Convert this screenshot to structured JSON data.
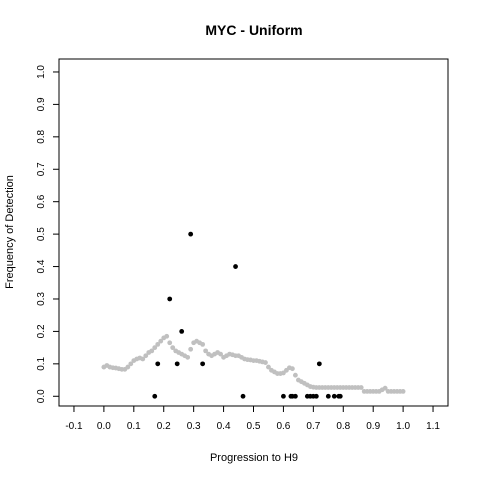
{
  "chart_data": {
    "type": "scatter",
    "title": "MYC - Uniform",
    "xlabel": "Progression to H9",
    "ylabel": "Frequency of Detection",
    "xlim": [
      -0.15,
      1.15
    ],
    "ylim": [
      -0.03,
      1.04
    ],
    "xticks": [
      -0.1,
      0.0,
      0.1,
      0.2,
      0.3,
      0.4,
      0.5,
      0.6,
      0.7,
      0.8,
      0.9,
      1.0,
      1.1
    ],
    "xtick_labels": [
      "-0.1",
      "0.0",
      "0.1",
      "0.2",
      "0.3",
      "0.4",
      "0.5",
      "0.6",
      "0.7",
      "0.8",
      "0.9",
      "1.0",
      "1.1"
    ],
    "yticks": [
      0.0,
      0.1,
      0.2,
      0.3,
      0.4,
      0.5,
      0.6,
      0.7,
      0.8,
      0.9,
      1.0
    ],
    "ytick_labels": [
      "0.0",
      "0.1",
      "0.2",
      "0.3",
      "0.4",
      "0.5",
      "0.6",
      "0.7",
      "0.8",
      "0.9",
      "1.0"
    ],
    "grid": false,
    "legend": "none",
    "series": [
      {
        "color": "#c0c0c0",
        "x": [
          0.0,
          0.01,
          0.02,
          0.03,
          0.04,
          0.05,
          0.06,
          0.07,
          0.08,
          0.09,
          0.1,
          0.11,
          0.12,
          0.13,
          0.14,
          0.15,
          0.16,
          0.17,
          0.18,
          0.19,
          0.2,
          0.21,
          0.22,
          0.23,
          0.24,
          0.25,
          0.26,
          0.27,
          0.28,
          0.29,
          0.3,
          0.31,
          0.32,
          0.33,
          0.34,
          0.35,
          0.36,
          0.37,
          0.38,
          0.39,
          0.4,
          0.41,
          0.42,
          0.43,
          0.44,
          0.45,
          0.46,
          0.47,
          0.48,
          0.49,
          0.5,
          0.51,
          0.52,
          0.53,
          0.54,
          0.55,
          0.56,
          0.57,
          0.58,
          0.59,
          0.6,
          0.61,
          0.62,
          0.63,
          0.64,
          0.65,
          0.66,
          0.67,
          0.68,
          0.69,
          0.7,
          0.71,
          0.72,
          0.73,
          0.74,
          0.75,
          0.76,
          0.77,
          0.78,
          0.79,
          0.8,
          0.81,
          0.82,
          0.83,
          0.84,
          0.85,
          0.86,
          0.87,
          0.88,
          0.89,
          0.9,
          0.91,
          0.92,
          0.93,
          0.94,
          0.95,
          0.96,
          0.97,
          0.98,
          0.99,
          1.0
        ],
        "y": [
          0.09,
          0.095,
          0.09,
          0.088,
          0.087,
          0.085,
          0.083,
          0.083,
          0.09,
          0.1,
          0.11,
          0.115,
          0.118,
          0.115,
          0.125,
          0.135,
          0.14,
          0.15,
          0.16,
          0.17,
          0.18,
          0.185,
          0.165,
          0.15,
          0.14,
          0.135,
          0.13,
          0.125,
          0.12,
          0.145,
          0.165,
          0.17,
          0.165,
          0.16,
          0.14,
          0.13,
          0.125,
          0.13,
          0.135,
          0.13,
          0.12,
          0.125,
          0.13,
          0.128,
          0.125,
          0.125,
          0.12,
          0.115,
          0.113,
          0.112,
          0.11,
          0.11,
          0.108,
          0.106,
          0.104,
          0.09,
          0.08,
          0.075,
          0.07,
          0.07,
          0.072,
          0.08,
          0.088,
          0.085,
          0.065,
          0.05,
          0.045,
          0.04,
          0.035,
          0.03,
          0.028,
          0.027,
          0.027,
          0.027,
          0.027,
          0.027,
          0.027,
          0.027,
          0.027,
          0.027,
          0.027,
          0.027,
          0.027,
          0.027,
          0.027,
          0.027,
          0.027,
          0.015,
          0.015,
          0.015,
          0.015,
          0.015,
          0.015,
          0.02,
          0.025,
          0.015,
          0.015,
          0.015,
          0.015,
          0.015,
          0.015
        ]
      },
      {
        "color": "#000000",
        "x": [
          0.17,
          0.18,
          0.22,
          0.245,
          0.26,
          0.29,
          0.33,
          0.44,
          0.465,
          0.6,
          0.625,
          0.63,
          0.64,
          0.68,
          0.69,
          0.7,
          0.71,
          0.72,
          0.75,
          0.77,
          0.785,
          0.79
        ],
        "y": [
          0.0,
          0.1,
          0.3,
          0.1,
          0.2,
          0.5,
          0.1,
          0.4,
          0.0,
          0.0,
          0.0,
          0.0,
          0.0,
          0.0,
          0.0,
          0.0,
          0.0,
          0.1,
          0.0,
          0.0,
          0.0,
          0.0
        ]
      }
    ]
  }
}
